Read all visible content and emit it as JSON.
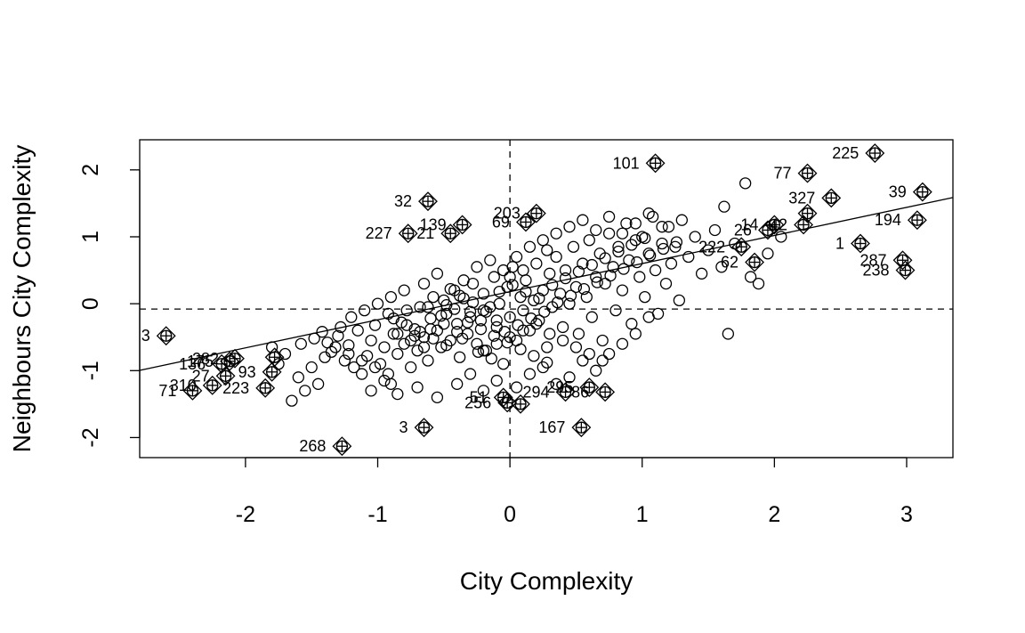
{
  "chart_data": {
    "type": "scatter",
    "title": "",
    "xlabel": "City Complexity",
    "ylabel": "Neighbours City Complexity",
    "xlim": [
      -2.8,
      3.35
    ],
    "ylim": [
      -2.3,
      2.45
    ],
    "xticks": [
      -2,
      -1,
      0,
      1,
      2,
      3
    ],
    "yticks": [
      -2,
      -1,
      0,
      1,
      2
    ],
    "xtick_labels": [
      "-2",
      "-1",
      "0",
      "1",
      "2",
      "3"
    ],
    "ytick_labels": [
      "-2",
      "-1",
      "0",
      "1",
      "2"
    ],
    "reference_lines": {
      "vertical_x": 0,
      "horizontal_y": -0.08
    },
    "regression_line": {
      "intercept": 0.18,
      "slope": 0.42
    },
    "grid": false,
    "legend": "none",
    "points": [
      [
        -1.48,
        -0.52
      ],
      [
        -1.42,
        -0.42
      ],
      [
        -1.38,
        -0.58
      ],
      [
        -1.35,
        -0.72
      ],
      [
        -1.3,
        -0.48
      ],
      [
        -1.28,
        -0.35
      ],
      [
        -1.25,
        -0.85
      ],
      [
        -1.22,
        -0.62
      ],
      [
        -1.18,
        -0.95
      ],
      [
        -1.15,
        -0.4
      ],
      [
        -1.12,
        -1.05
      ],
      [
        -1.08,
        -0.78
      ],
      [
        -1.05,
        -0.55
      ],
      [
        -1.02,
        -0.32
      ],
      [
        -0.98,
        -0.9
      ],
      [
        -0.95,
        -0.65
      ],
      [
        -0.92,
        -0.15
      ],
      [
        -0.9,
        -1.2
      ],
      [
        -0.88,
        -0.45
      ],
      [
        -0.85,
        -0.75
      ],
      [
        -0.82,
        -0.28
      ],
      [
        -0.8,
        -0.6
      ],
      [
        -0.78,
        -0.1
      ],
      [
        -0.75,
        -0.95
      ],
      [
        -0.72,
        -0.38
      ],
      [
        -0.7,
        -0.7
      ],
      [
        -0.68,
        -0.05
      ],
      [
        -0.65,
        -0.5
      ],
      [
        -0.62,
        -0.85
      ],
      [
        -0.6,
        -0.22
      ],
      [
        -0.58,
        0.1
      ],
      [
        -0.55,
        -0.4
      ],
      [
        -0.52,
        -0.65
      ],
      [
        -0.5,
        0.05
      ],
      [
        -0.48,
        -0.15
      ],
      [
        -0.45,
        -0.55
      ],
      [
        -0.42,
        0.2
      ],
      [
        -0.4,
        -0.3
      ],
      [
        -0.38,
        -0.8
      ],
      [
        -0.35,
        0.08
      ],
      [
        -0.32,
        -0.45
      ],
      [
        -0.3,
        -0.12
      ],
      [
        -0.28,
        0.3
      ],
      [
        -0.25,
        -0.6
      ],
      [
        -0.22,
        -0.25
      ],
      [
        -0.2,
        0.15
      ],
      [
        -0.18,
        -0.7
      ],
      [
        -0.15,
        -0.05
      ],
      [
        -0.12,
        0.4
      ],
      [
        -0.1,
        -0.35
      ],
      [
        -0.08,
        0.0
      ],
      [
        -0.05,
        -0.9
      ],
      [
        -0.02,
        0.25
      ],
      [
        0.0,
        -0.2
      ],
      [
        0.02,
        0.55
      ],
      [
        0.05,
        -0.55
      ],
      [
        0.08,
        0.1
      ],
      [
        0.1,
        -0.1
      ],
      [
        0.12,
        0.35
      ],
      [
        0.15,
        -0.4
      ],
      [
        0.18,
        0.05
      ],
      [
        0.2,
        0.6
      ],
      [
        0.22,
        -0.25
      ],
      [
        0.25,
        0.2
      ],
      [
        0.28,
        -0.65
      ],
      [
        0.3,
        0.45
      ],
      [
        0.32,
        -0.05
      ],
      [
        0.35,
        0.7
      ],
      [
        0.38,
        0.15
      ],
      [
        0.4,
        -0.35
      ],
      [
        0.42,
        0.5
      ],
      [
        0.45,
        0.0
      ],
      [
        0.48,
        0.85
      ],
      [
        0.5,
        0.25
      ],
      [
        0.52,
        -0.45
      ],
      [
        0.55,
        0.6
      ],
      [
        0.58,
        0.1
      ],
      [
        0.6,
        0.95
      ],
      [
        0.62,
        -0.2
      ],
      [
        0.65,
        0.4
      ],
      [
        0.68,
        0.75
      ],
      [
        0.7,
        -0.55
      ],
      [
        0.72,
        0.3
      ],
      [
        0.75,
        1.05
      ],
      [
        0.78,
        0.55
      ],
      [
        0.8,
        -0.1
      ],
      [
        0.82,
        0.85
      ],
      [
        0.85,
        0.2
      ],
      [
        0.88,
        1.2
      ],
      [
        0.9,
        0.65
      ],
      [
        0.92,
        -0.3
      ],
      [
        0.95,
        0.95
      ],
      [
        0.98,
        0.4
      ],
      [
        1.0,
        1.0
      ],
      [
        1.02,
        0.1
      ],
      [
        1.05,
        0.75
      ],
      [
        1.08,
        1.3
      ],
      [
        1.1,
        0.5
      ],
      [
        1.12,
        -0.15
      ],
      [
        1.15,
        0.9
      ],
      [
        1.18,
        0.3
      ],
      [
        1.2,
        1.15
      ],
      [
        1.22,
        0.6
      ],
      [
        1.25,
        0.85
      ],
      [
        1.28,
        0.05
      ],
      [
        1.3,
        1.25
      ],
      [
        1.35,
        0.7
      ],
      [
        1.4,
        1.0
      ],
      [
        1.45,
        0.45
      ],
      [
        1.5,
        0.8
      ],
      [
        1.55,
        1.1
      ],
      [
        1.6,
        0.55
      ],
      [
        1.62,
        1.45
      ],
      [
        1.65,
        -0.45
      ],
      [
        1.7,
        0.9
      ],
      [
        1.78,
        1.8
      ],
      [
        1.82,
        0.4
      ],
      [
        1.88,
        0.3
      ],
      [
        1.95,
        0.75
      ],
      [
        2.05,
        1.0
      ],
      [
        -1.05,
        -1.3
      ],
      [
        -0.95,
        -1.15
      ],
      [
        -0.85,
        -1.35
      ],
      [
        -0.7,
        -1.25
      ],
      [
        -0.55,
        -1.4
      ],
      [
        -0.4,
        -1.2
      ],
      [
        -0.3,
        -1.05
      ],
      [
        -0.2,
        -1.3
      ],
      [
        -0.1,
        -1.15
      ],
      [
        0.05,
        -1.25
      ],
      [
        0.15,
        -1.05
      ],
      [
        0.25,
        -0.95
      ],
      [
        0.35,
        -1.2
      ],
      [
        0.45,
        -1.1
      ],
      [
        0.55,
        -0.85
      ],
      [
        0.65,
        -1.0
      ],
      [
        0.75,
        -0.75
      ],
      [
        0.85,
        -0.6
      ],
      [
        0.95,
        -0.45
      ],
      [
        1.05,
        -0.2
      ],
      [
        -1.6,
        -1.1
      ],
      [
        -1.55,
        -1.3
      ],
      [
        -1.5,
        -0.95
      ],
      [
        -1.45,
        -1.2
      ],
      [
        -1.4,
        -0.8
      ],
      [
        -1.65,
        -1.45
      ],
      [
        -1.7,
        -0.75
      ],
      [
        -1.75,
        -0.9
      ],
      [
        -1.8,
        -0.65
      ],
      [
        -1.58,
        -0.6
      ],
      [
        -0.65,
        0.3
      ],
      [
        -0.55,
        0.45
      ],
      [
        -0.45,
        0.22
      ],
      [
        -0.35,
        0.35
      ],
      [
        -0.25,
        0.55
      ],
      [
        -0.15,
        0.65
      ],
      [
        -0.05,
        0.5
      ],
      [
        0.05,
        0.7
      ],
      [
        0.15,
        0.85
      ],
      [
        0.25,
        0.95
      ],
      [
        0.35,
        1.05
      ],
      [
        0.45,
        1.15
      ],
      [
        0.55,
        1.25
      ],
      [
        0.65,
        1.1
      ],
      [
        0.75,
        1.3
      ],
      [
        0.85,
        1.05
      ],
      [
        0.95,
        1.2
      ],
      [
        1.05,
        1.35
      ],
      [
        1.15,
        1.15
      ],
      [
        0.28,
        0.8
      ],
      [
        -0.62,
        -0.05
      ],
      [
        -0.52,
        -0.18
      ],
      [
        -0.42,
        -0.08
      ],
      [
        -0.32,
        -0.28
      ],
      [
        -0.22,
        -0.38
      ],
      [
        -0.12,
        -0.48
      ],
      [
        -0.02,
        -0.58
      ],
      [
        0.08,
        -0.68
      ],
      [
        0.18,
        -0.78
      ],
      [
        0.28,
        -0.88
      ],
      [
        -0.72,
        -0.48
      ],
      [
        -0.6,
        -0.38
      ],
      [
        -0.48,
        -0.62
      ],
      [
        -0.36,
        -0.52
      ],
      [
        -0.24,
        -0.72
      ],
      [
        -0.14,
        -0.82
      ],
      [
        -0.04,
        -0.42
      ],
      [
        0.06,
        -0.32
      ],
      [
        0.16,
        -0.22
      ],
      [
        0.26,
        -0.12
      ],
      [
        0.36,
        0.02
      ],
      [
        0.46,
        0.12
      ],
      [
        0.56,
        0.22
      ],
      [
        0.66,
        0.32
      ],
      [
        0.76,
        0.42
      ],
      [
        0.86,
        0.52
      ],
      [
        0.96,
        0.62
      ],
      [
        1.06,
        0.72
      ],
      [
        1.16,
        0.82
      ],
      [
        1.26,
        0.92
      ],
      [
        -0.88,
        -0.22
      ],
      [
        -0.78,
        -0.32
      ],
      [
        -0.68,
        -0.42
      ],
      [
        -0.58,
        -0.52
      ],
      [
        -0.48,
        -0.02
      ],
      [
        -0.38,
        0.12
      ],
      [
        -0.28,
        0.02
      ],
      [
        -0.18,
        -0.12
      ],
      [
        -0.08,
        0.18
      ],
      [
        0.02,
        0.28
      ],
      [
        0.12,
        0.18
      ],
      [
        0.22,
        0.08
      ],
      [
        0.32,
        0.28
      ],
      [
        0.42,
        0.38
      ],
      [
        0.52,
        0.48
      ],
      [
        0.62,
        0.58
      ],
      [
        0.72,
        0.68
      ],
      [
        0.82,
        0.78
      ],
      [
        0.92,
        0.88
      ],
      [
        1.02,
        0.98
      ],
      [
        -1.2,
        -0.2
      ],
      [
        -1.1,
        -0.1
      ],
      [
        -1.0,
        0.0
      ],
      [
        -0.9,
        0.1
      ],
      [
        -0.8,
        0.2
      ],
      [
        -1.32,
        -0.65
      ],
      [
        -1.22,
        -0.75
      ],
      [
        -1.12,
        -0.85
      ],
      [
        -1.02,
        -0.95
      ],
      [
        -0.92,
        -1.05
      ],
      [
        0.3,
        -0.45
      ],
      [
        0.4,
        -0.55
      ],
      [
        0.5,
        -0.65
      ],
      [
        0.6,
        -0.75
      ],
      [
        0.7,
        -0.85
      ],
      [
        0.2,
        -0.3
      ],
      [
        0.1,
        -0.4
      ],
      [
        0.0,
        -0.5
      ],
      [
        -0.1,
        -0.6
      ],
      [
        -0.2,
        -0.7
      ],
      [
        -0.85,
        -0.45
      ],
      [
        -0.75,
        -0.55
      ],
      [
        -0.65,
        -0.65
      ],
      [
        -0.5,
        -0.3
      ],
      [
        -0.4,
        -0.42
      ],
      [
        -0.3,
        -0.2
      ],
      [
        -0.2,
        -0.1
      ],
      [
        -0.1,
        -0.25
      ],
      [
        0.0,
        0.4
      ],
      [
        0.1,
        0.5
      ]
    ],
    "labeled_points": [
      {
        "x": -2.6,
        "y": -0.48,
        "label": "3"
      },
      {
        "x": -2.4,
        "y": -1.3,
        "label": "71"
      },
      {
        "x": -2.25,
        "y": -1.22,
        "label": "310"
      },
      {
        "x": -2.18,
        "y": -0.9,
        "label": "136"
      },
      {
        "x": -2.12,
        "y": -0.86,
        "label": "175"
      },
      {
        "x": -2.15,
        "y": -1.08,
        "label": "27"
      },
      {
        "x": -2.08,
        "y": -0.82,
        "label": "282"
      },
      {
        "x": -1.85,
        "y": -1.26,
        "label": "223"
      },
      {
        "x": -1.8,
        "y": -1.02,
        "label": "93"
      },
      {
        "x": -1.78,
        "y": -0.8,
        "label": ""
      },
      {
        "x": -1.27,
        "y": -2.13,
        "label": "268"
      },
      {
        "x": -0.77,
        "y": 1.05,
        "label": "227"
      },
      {
        "x": -0.62,
        "y": 1.53,
        "label": "32"
      },
      {
        "x": -0.45,
        "y": 1.05,
        "label": "21"
      },
      {
        "x": -0.36,
        "y": 1.18,
        "label": "139"
      },
      {
        "x": -0.65,
        "y": -1.85,
        "label": "3"
      },
      {
        "x": -0.05,
        "y": -1.4,
        "label": "51"
      },
      {
        "x": -0.02,
        "y": -1.48,
        "label": "256"
      },
      {
        "x": 0.08,
        "y": -1.5,
        "label": ""
      },
      {
        "x": 0.12,
        "y": 1.22,
        "label": "69"
      },
      {
        "x": 0.2,
        "y": 1.35,
        "label": "203"
      },
      {
        "x": 0.42,
        "y": -1.32,
        "label": "294"
      },
      {
        "x": 0.6,
        "y": -1.25,
        "label": "295"
      },
      {
        "x": 0.72,
        "y": -1.32,
        "label": "86"
      },
      {
        "x": 0.54,
        "y": -1.85,
        "label": "167"
      },
      {
        "x": 1.1,
        "y": 2.1,
        "label": "101"
      },
      {
        "x": 1.75,
        "y": 0.85,
        "label": "222"
      },
      {
        "x": 1.85,
        "y": 0.62,
        "label": "62"
      },
      {
        "x": 1.95,
        "y": 1.1,
        "label": "26"
      },
      {
        "x": 2.0,
        "y": 1.18,
        "label": "14"
      },
      {
        "x": 2.22,
        "y": 1.18,
        "label": "42"
      },
      {
        "x": 2.25,
        "y": 1.35,
        "label": ""
      },
      {
        "x": 2.25,
        "y": 1.95,
        "label": "77"
      },
      {
        "x": 2.43,
        "y": 1.58,
        "label": "327"
      },
      {
        "x": 2.65,
        "y": 0.9,
        "label": "1"
      },
      {
        "x": 2.76,
        "y": 2.25,
        "label": "225"
      },
      {
        "x": 2.97,
        "y": 0.65,
        "label": "287"
      },
      {
        "x": 2.99,
        "y": 0.5,
        "label": "238"
      },
      {
        "x": 3.08,
        "y": 1.25,
        "label": "194"
      },
      {
        "x": 3.12,
        "y": 1.67,
        "label": "39"
      }
    ]
  }
}
